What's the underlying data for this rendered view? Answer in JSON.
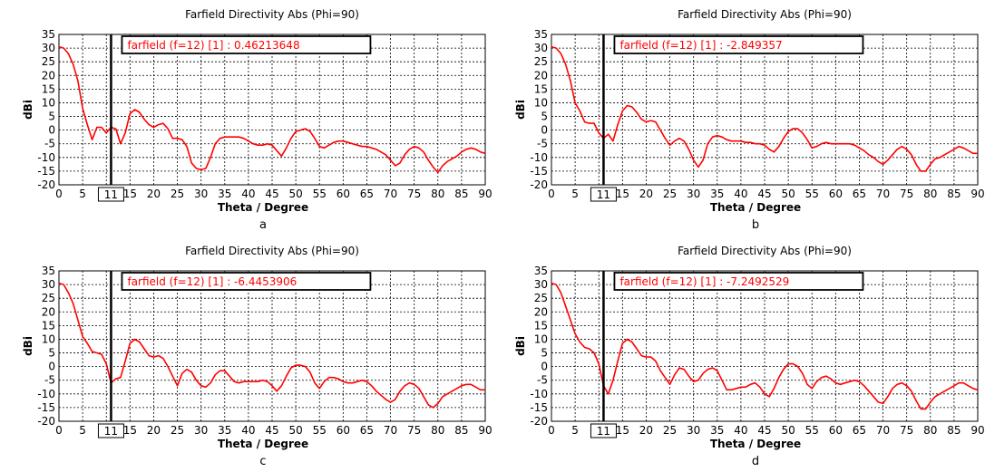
{
  "chart_data": [
    {
      "type": "line",
      "panel_label": "a",
      "title": "Farfield Directivity Abs (Phi=90)",
      "xlabel": "Theta / Degree",
      "ylabel": "dBi",
      "xlim": [
        0,
        90
      ],
      "ylim": [
        -20,
        35
      ],
      "xticks": [
        0,
        5,
        10,
        15,
        20,
        25,
        30,
        35,
        40,
        45,
        50,
        55,
        60,
        65,
        70,
        75,
        80,
        85,
        90
      ],
      "yticks": [
        35,
        30,
        25,
        20,
        15,
        10,
        5,
        0,
        -5,
        -10,
        -15,
        -20
      ],
      "marker_x": 11,
      "marker_label": "11",
      "annotation": "farfield (f=12) [1] : 0.46213648",
      "grid": true,
      "color": "#ff0000",
      "x": [
        0,
        1,
        2,
        3,
        4,
        5,
        6,
        7,
        8,
        9,
        10,
        11,
        12,
        13,
        14,
        15,
        16,
        17,
        18,
        19,
        20,
        21,
        22,
        23,
        24,
        25,
        26,
        27,
        28,
        29,
        30,
        31,
        32,
        33,
        34,
        35,
        36,
        37,
        38,
        39,
        40,
        41,
        42,
        43,
        44,
        45,
        46,
        47,
        48,
        49,
        50,
        51,
        52,
        53,
        54,
        55,
        56,
        57,
        58,
        59,
        60,
        61,
        62,
        63,
        64,
        65,
        66,
        67,
        68,
        69,
        70,
        71,
        72,
        73,
        74,
        75,
        76,
        77,
        78,
        79,
        80,
        81,
        82,
        83,
        84,
        85,
        86,
        87,
        88,
        89,
        90
      ],
      "y": [
        30.5,
        30,
        28,
        24,
        18,
        8,
        2,
        -3.5,
        1,
        1,
        -1,
        1,
        0.5,
        -5,
        -1,
        6,
        7.5,
        6.5,
        4,
        2,
        1,
        2,
        2.5,
        0.5,
        -3,
        -3,
        -3.5,
        -6,
        -12,
        -14,
        -14.5,
        -14,
        -10,
        -5,
        -3,
        -2.5,
        -2.5,
        -2.5,
        -2.5,
        -3,
        -4,
        -5,
        -5.5,
        -5.5,
        -5,
        -5.5,
        -7.5,
        -9.5,
        -6.5,
        -3,
        -0.5,
        0,
        0.5,
        -0.5,
        -3,
        -6,
        -6.5,
        -5.5,
        -4.5,
        -4,
        -4,
        -4.5,
        -5,
        -5.5,
        -6,
        -6,
        -6.5,
        -7,
        -8,
        -9,
        -11,
        -13,
        -12,
        -9,
        -7,
        -6,
        -6.5,
        -8,
        -11,
        -13.5,
        -15.5,
        -13,
        -11.5,
        -10.5,
        -9.5,
        -8,
        -7,
        -6.5,
        -7,
        -8,
        -8.5
      ]
    },
    {
      "type": "line",
      "panel_label": "b",
      "title": "Farfield Directivity Abs (Phi=90)",
      "xlabel": "Theta / Degree",
      "ylabel": "dBi",
      "xlim": [
        0,
        90
      ],
      "ylim": [
        -20,
        35
      ],
      "xticks": [
        0,
        5,
        10,
        15,
        20,
        25,
        30,
        35,
        40,
        45,
        50,
        55,
        60,
        65,
        70,
        75,
        80,
        85,
        90
      ],
      "yticks": [
        35,
        30,
        25,
        20,
        15,
        10,
        5,
        0,
        -5,
        -10,
        -15,
        -20
      ],
      "marker_x": 11,
      "marker_label": "11",
      "annotation": "farfield (f=12) [1] : -2.849357",
      "grid": true,
      "color": "#ff0000",
      "x": [
        0,
        1,
        2,
        3,
        4,
        5,
        6,
        7,
        8,
        9,
        10,
        11,
        12,
        13,
        14,
        15,
        16,
        17,
        18,
        19,
        20,
        21,
        22,
        23,
        24,
        25,
        26,
        27,
        28,
        29,
        30,
        31,
        32,
        33,
        34,
        35,
        36,
        37,
        38,
        39,
        40,
        41,
        42,
        43,
        44,
        45,
        46,
        47,
        48,
        49,
        50,
        51,
        52,
        53,
        54,
        55,
        56,
        57,
        58,
        59,
        60,
        61,
        62,
        63,
        64,
        65,
        66,
        67,
        68,
        69,
        70,
        71,
        72,
        73,
        74,
        75,
        76,
        77,
        78,
        79,
        80,
        81,
        82,
        83,
        84,
        85,
        86,
        87,
        88,
        89,
        90
      ],
      "y": [
        30.5,
        30,
        28,
        24,
        18,
        10,
        7,
        3,
        2.5,
        2.5,
        -1,
        -3,
        -1.5,
        -4,
        2,
        7,
        9,
        8.5,
        6.5,
        4,
        3,
        3.5,
        3,
        0,
        -3,
        -5.5,
        -4,
        -3,
        -4,
        -7,
        -11,
        -13.5,
        -11,
        -5,
        -2.5,
        -2,
        -2.5,
        -3.5,
        -4,
        -4,
        -4,
        -4.5,
        -4.5,
        -5,
        -5,
        -5.5,
        -7,
        -8,
        -6,
        -3,
        -0.5,
        0.5,
        0.5,
        -1,
        -3.5,
        -6.5,
        -6,
        -5,
        -4.5,
        -5,
        -5,
        -5,
        -5,
        -5,
        -5.5,
        -6.5,
        -7.5,
        -9,
        -10,
        -11.5,
        -12.5,
        -11,
        -9,
        -7,
        -6,
        -7,
        -9,
        -12.5,
        -15,
        -15,
        -12.5,
        -10.5,
        -10,
        -9,
        -8,
        -7,
        -6,
        -6.5,
        -7.5,
        -8.5,
        -8.5
      ]
    },
    {
      "type": "line",
      "panel_label": "c",
      "title": "Farfield Directivity Abs (Phi=90)",
      "xlabel": "Theta / Degree",
      "ylabel": "dBi",
      "xlim": [
        0,
        90
      ],
      "ylim": [
        -20,
        35
      ],
      "xticks": [
        0,
        5,
        10,
        15,
        20,
        25,
        30,
        35,
        40,
        45,
        50,
        55,
        60,
        65,
        70,
        75,
        80,
        85,
        90
      ],
      "yticks": [
        35,
        30,
        25,
        20,
        15,
        10,
        5,
        0,
        -5,
        -10,
        -15,
        -20
      ],
      "marker_x": 11,
      "marker_label": "11",
      "annotation": "farfield (f=12) [1] : -6.4453906",
      "grid": true,
      "color": "#ff0000",
      "x": [
        0,
        1,
        2,
        3,
        4,
        5,
        6,
        7,
        8,
        9,
        10,
        11,
        12,
        13,
        14,
        15,
        16,
        17,
        18,
        19,
        20,
        21,
        22,
        23,
        24,
        25,
        26,
        27,
        28,
        29,
        30,
        31,
        32,
        33,
        34,
        35,
        36,
        37,
        38,
        39,
        40,
        41,
        42,
        43,
        44,
        45,
        46,
        47,
        48,
        49,
        50,
        51,
        52,
        53,
        54,
        55,
        56,
        57,
        58,
        59,
        60,
        61,
        62,
        63,
        64,
        65,
        66,
        67,
        68,
        69,
        70,
        71,
        72,
        73,
        74,
        75,
        76,
        77,
        78,
        79,
        80,
        81,
        82,
        83,
        84,
        85,
        86,
        87,
        88,
        89,
        90
      ],
      "y": [
        30.5,
        30,
        27,
        23,
        17,
        11,
        8.5,
        5.5,
        5,
        4.5,
        1,
        -6,
        -4.5,
        -4,
        2,
        8.5,
        10,
        9,
        6.5,
        4,
        3.5,
        4,
        3,
        0,
        -3.5,
        -7,
        -2.5,
        -1,
        -2,
        -5,
        -7,
        -7.5,
        -6,
        -3,
        -1.5,
        -1.5,
        -3.5,
        -5.5,
        -6,
        -5.5,
        -5.5,
        -5.5,
        -5.5,
        -5,
        -5.5,
        -7,
        -9,
        -7,
        -3.5,
        -0.5,
        0.5,
        0.5,
        0,
        -2,
        -6,
        -8,
        -5.5,
        -4,
        -4,
        -4.5,
        -5.5,
        -6,
        -6,
        -5.5,
        -5,
        -5.5,
        -7,
        -9,
        -10.5,
        -12,
        -13,
        -12,
        -9,
        -7,
        -6,
        -6.5,
        -8,
        -11,
        -14,
        -15,
        -13.5,
        -11,
        -10,
        -9,
        -8,
        -7,
        -6.5,
        -6.5,
        -7.5,
        -8.5,
        -8.5
      ]
    },
    {
      "type": "line",
      "panel_label": "d",
      "title": "Farfield Directivity Abs (Phi=90)",
      "xlabel": "Theta / Degree",
      "ylabel": "dBi",
      "xlim": [
        0,
        90
      ],
      "ylim": [
        -20,
        35
      ],
      "xticks": [
        0,
        5,
        10,
        15,
        20,
        25,
        30,
        35,
        40,
        45,
        50,
        55,
        60,
        65,
        70,
        75,
        80,
        85,
        90
      ],
      "yticks": [
        35,
        30,
        25,
        20,
        15,
        10,
        5,
        0,
        -5,
        -10,
        -15,
        -20
      ],
      "marker_x": 11,
      "marker_label": "11",
      "annotation": "farfield (f=12) [1] : -7.2492529",
      "grid": true,
      "color": "#ff0000",
      "x": [
        0,
        1,
        2,
        3,
        4,
        5,
        6,
        7,
        8,
        9,
        10,
        11,
        12,
        13,
        14,
        15,
        16,
        17,
        18,
        19,
        20,
        21,
        22,
        23,
        24,
        25,
        26,
        27,
        28,
        29,
        30,
        31,
        32,
        33,
        34,
        35,
        36,
        37,
        38,
        39,
        40,
        41,
        42,
        43,
        44,
        45,
        46,
        47,
        48,
        49,
        50,
        51,
        52,
        53,
        54,
        55,
        56,
        57,
        58,
        59,
        60,
        61,
        62,
        63,
        64,
        65,
        66,
        67,
        68,
        69,
        70,
        71,
        72,
        73,
        74,
        75,
        76,
        77,
        78,
        79,
        80,
        81,
        82,
        83,
        84,
        85,
        86,
        87,
        88,
        89,
        90
      ],
      "y": [
        30.5,
        30,
        27,
        22,
        17,
        12,
        9,
        7,
        6.5,
        5,
        1,
        -7,
        -10,
        -5,
        2,
        8.5,
        10,
        9,
        6.5,
        4,
        3.5,
        3.5,
        2,
        -1.5,
        -4,
        -6.5,
        -3,
        -0.5,
        -1,
        -3.5,
        -5.5,
        -5,
        -2.5,
        -1,
        -0.5,
        -1.5,
        -5,
        -8.5,
        -8.5,
        -8,
        -7.5,
        -7.5,
        -6.5,
        -6,
        -7.5,
        -10,
        -11,
        -8,
        -4,
        -1,
        1,
        1,
        0,
        -2.5,
        -6.5,
        -8,
        -5.5,
        -4,
        -3.5,
        -4.5,
        -6,
        -6.5,
        -6,
        -5.5,
        -5,
        -5.5,
        -7,
        -9,
        -11,
        -13,
        -13.5,
        -11,
        -8,
        -6.5,
        -6,
        -7,
        -9,
        -12.5,
        -15.5,
        -15.5,
        -13,
        -11,
        -10,
        -9,
        -8,
        -7,
        -6,
        -6,
        -7,
        -8,
        -8.5
      ]
    }
  ]
}
